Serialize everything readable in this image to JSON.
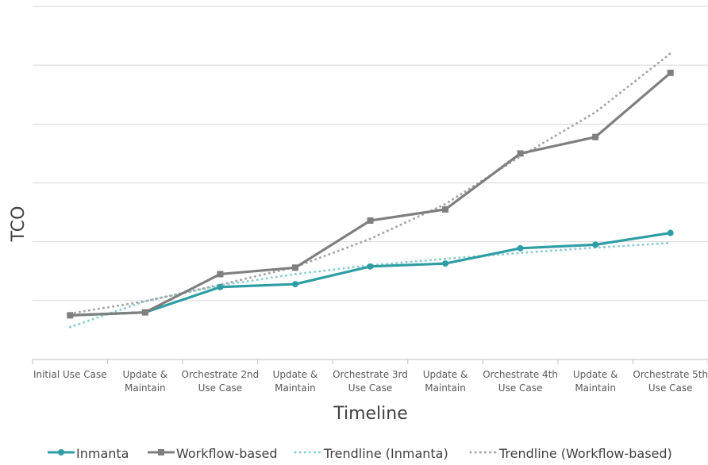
{
  "chart_data": {
    "type": "line",
    "title": "",
    "xlabel": "Timeline",
    "ylabel": "TCO",
    "categories": [
      [
        "Initial Use Case"
      ],
      [
        "Update &",
        "Maintain"
      ],
      [
        "Orchestrate 2nd",
        "Use Case"
      ],
      [
        "Update &",
        "Maintain"
      ],
      [
        "Orchestrate 3rd",
        "Use Case"
      ],
      [
        "Update &",
        "Maintain"
      ],
      [
        "Orchestrate 4th",
        "Use Case"
      ],
      [
        "Update &",
        "Maintain"
      ],
      [
        "Orchestrate 5th",
        "Use Case"
      ]
    ],
    "ylim": [
      0,
      6
    ],
    "grid": true,
    "ytick_labels_shown": false,
    "legend_position": "bottom",
    "series": [
      {
        "name": "Inmanta",
        "style": "solid",
        "marker": "circle",
        "color": "#2E9EA4",
        "values": [
          0.75,
          0.8,
          1.23,
          1.28,
          1.58,
          1.63,
          1.89,
          1.95,
          2.15
        ]
      },
      {
        "name": "Workflow-based",
        "style": "solid",
        "marker": "square",
        "color": "#7F7F7F",
        "values": [
          0.75,
          0.8,
          1.45,
          1.56,
          2.36,
          2.55,
          3.5,
          3.78,
          4.87
        ]
      },
      {
        "name": "Trendline (Inmanta)",
        "style": "dotted",
        "marker": "none",
        "color": "#8FCDD0",
        "values": [
          0.55,
          0.99,
          1.26,
          1.45,
          1.6,
          1.71,
          1.81,
          1.9,
          1.98
        ]
      },
      {
        "name": "Trendline (Workflow-based)",
        "style": "dotted",
        "marker": "none",
        "color": "#A6A6A6",
        "values": [
          0.78,
          0.99,
          1.27,
          1.57,
          2.05,
          2.64,
          3.45,
          4.2,
          5.2
        ]
      }
    ]
  }
}
